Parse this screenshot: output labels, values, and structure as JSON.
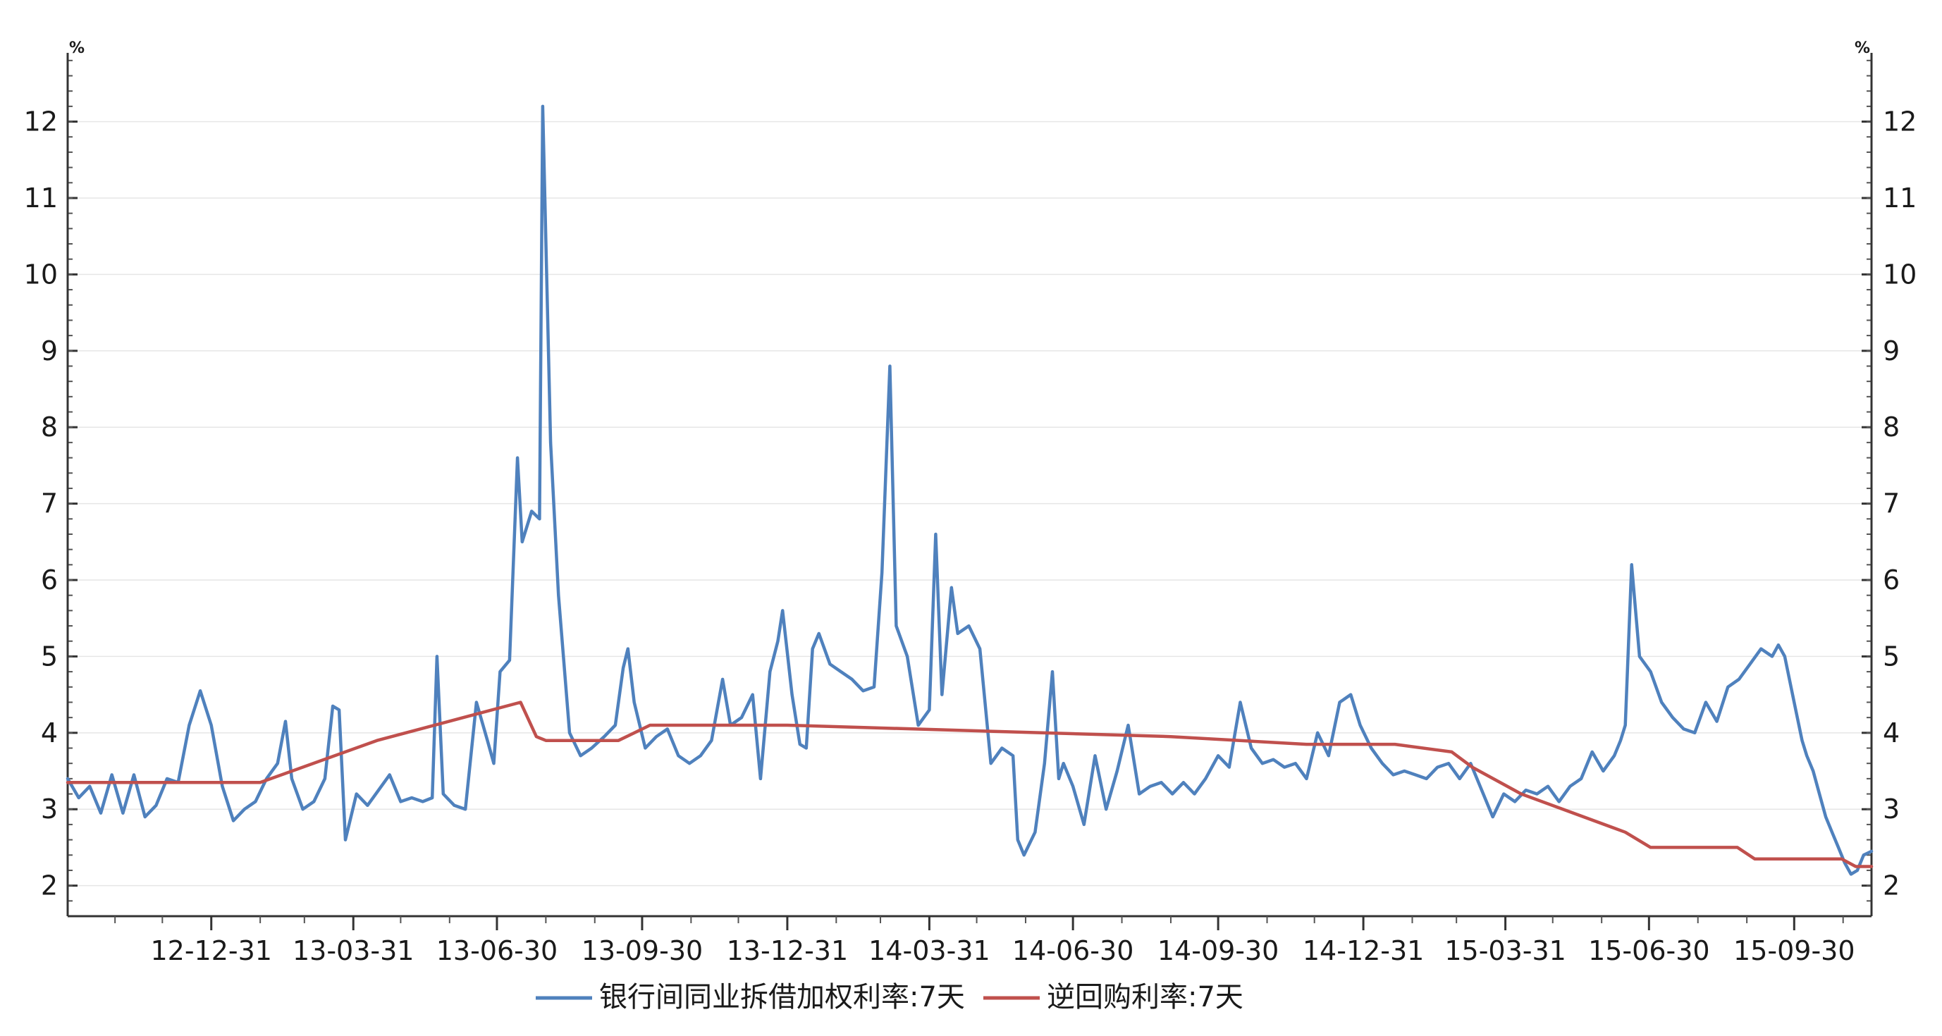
{
  "chart_data": {
    "type": "line",
    "title": "",
    "xlabel": "",
    "ylabel": "%",
    "y2label": "%",
    "x_range": [
      "2012-10-01",
      "2015-11-18"
    ],
    "ylim": [
      1.6,
      12.9
    ],
    "yticks": [
      2,
      3,
      4,
      5,
      6,
      7,
      8,
      9,
      10,
      11,
      12
    ],
    "grid": "horizontal",
    "legend_position": "bottom",
    "x_tick_labels": [
      {
        "date": "2012-12-31",
        "label": "12-12-31"
      },
      {
        "date": "2013-03-31",
        "label": "13-03-31"
      },
      {
        "date": "2013-06-30",
        "label": "13-06-30"
      },
      {
        "date": "2013-09-30",
        "label": "13-09-30"
      },
      {
        "date": "2013-12-31",
        "label": "13-12-31"
      },
      {
        "date": "2014-03-31",
        "label": "14-03-31"
      },
      {
        "date": "2014-06-30",
        "label": "14-06-30"
      },
      {
        "date": "2014-09-30",
        "label": "14-09-30"
      },
      {
        "date": "2014-12-31",
        "label": "14-12-31"
      },
      {
        "date": "2015-03-31",
        "label": "15-03-31"
      },
      {
        "date": "2015-06-30",
        "label": "15-06-30"
      },
      {
        "date": "2015-09-30",
        "label": "15-09-30"
      }
    ],
    "series": [
      {
        "name": "银行间同业拆借加权利率:7天",
        "color": "#4f81bd",
        "points": [
          [
            "2012-10-01",
            3.4
          ],
          [
            "2012-10-08",
            3.15
          ],
          [
            "2012-10-15",
            3.3
          ],
          [
            "2012-10-22",
            2.95
          ],
          [
            "2012-10-29",
            3.45
          ],
          [
            "2012-11-05",
            2.95
          ],
          [
            "2012-11-12",
            3.45
          ],
          [
            "2012-11-19",
            2.9
          ],
          [
            "2012-11-26",
            3.05
          ],
          [
            "2012-12-03",
            3.4
          ],
          [
            "2012-12-10",
            3.35
          ],
          [
            "2012-12-17",
            4.1
          ],
          [
            "2012-12-24",
            4.55
          ],
          [
            "2012-12-31",
            4.1
          ],
          [
            "2013-01-07",
            3.3
          ],
          [
            "2013-01-14",
            2.85
          ],
          [
            "2013-01-21",
            3.0
          ],
          [
            "2013-01-28",
            3.1
          ],
          [
            "2013-02-04",
            3.4
          ],
          [
            "2013-02-11",
            3.6
          ],
          [
            "2013-02-16",
            4.15
          ],
          [
            "2013-02-20",
            3.4
          ],
          [
            "2013-02-27",
            3.0
          ],
          [
            "2013-03-06",
            3.1
          ],
          [
            "2013-03-13",
            3.4
          ],
          [
            "2013-03-18",
            4.35
          ],
          [
            "2013-03-22",
            4.3
          ],
          [
            "2013-03-26",
            2.6
          ],
          [
            "2013-04-02",
            3.2
          ],
          [
            "2013-04-09",
            3.05
          ],
          [
            "2013-04-16",
            3.25
          ],
          [
            "2013-04-23",
            3.45
          ],
          [
            "2013-04-30",
            3.1
          ],
          [
            "2013-05-07",
            3.15
          ],
          [
            "2013-05-14",
            3.1
          ],
          [
            "2013-05-20",
            3.15
          ],
          [
            "2013-05-23",
            5.0
          ],
          [
            "2013-05-27",
            3.2
          ],
          [
            "2013-06-03",
            3.05
          ],
          [
            "2013-06-10",
            3.0
          ],
          [
            "2013-06-17",
            4.4
          ],
          [
            "2013-06-24",
            3.9
          ],
          [
            "2013-06-28",
            3.6
          ],
          [
            "2013-07-02",
            4.8
          ],
          [
            "2013-07-08",
            4.95
          ],
          [
            "2013-07-13",
            7.6
          ],
          [
            "2013-07-16",
            6.5
          ],
          [
            "2013-07-22",
            6.9
          ],
          [
            "2013-07-27",
            6.8
          ],
          [
            "2013-07-29",
            12.2
          ],
          [
            "2013-08-03",
            7.8
          ],
          [
            "2013-08-08",
            5.8
          ],
          [
            "2013-08-15",
            4.0
          ],
          [
            "2013-08-22",
            3.7
          ],
          [
            "2013-08-29",
            3.8
          ],
          [
            "2013-09-06",
            3.95
          ],
          [
            "2013-09-13",
            4.1
          ],
          [
            "2013-09-18",
            4.85
          ],
          [
            "2013-09-21",
            5.1
          ],
          [
            "2013-09-25",
            4.4
          ],
          [
            "2013-10-02",
            3.8
          ],
          [
            "2013-10-09",
            3.95
          ],
          [
            "2013-10-16",
            4.05
          ],
          [
            "2013-10-23",
            3.7
          ],
          [
            "2013-10-30",
            3.6
          ],
          [
            "2013-11-06",
            3.7
          ],
          [
            "2013-11-13",
            3.9
          ],
          [
            "2013-11-20",
            4.7
          ],
          [
            "2013-11-25",
            4.1
          ],
          [
            "2013-12-02",
            4.2
          ],
          [
            "2013-12-09",
            4.5
          ],
          [
            "2013-12-14",
            3.4
          ],
          [
            "2013-12-20",
            4.8
          ],
          [
            "2013-12-25",
            5.2
          ],
          [
            "2013-12-28",
            5.6
          ],
          [
            "2014-01-03",
            4.5
          ],
          [
            "2014-01-08",
            3.85
          ],
          [
            "2014-01-12",
            3.8
          ],
          [
            "2014-01-16",
            5.1
          ],
          [
            "2014-01-20",
            5.3
          ],
          [
            "2014-01-27",
            4.9
          ],
          [
            "2014-02-03",
            4.8
          ],
          [
            "2014-02-10",
            4.7
          ],
          [
            "2014-02-17",
            4.55
          ],
          [
            "2014-02-24",
            4.6
          ],
          [
            "2014-03-01",
            6.1
          ],
          [
            "2014-03-06",
            8.8
          ],
          [
            "2014-03-10",
            5.4
          ],
          [
            "2014-03-17",
            5.0
          ],
          [
            "2014-03-24",
            4.1
          ],
          [
            "2014-03-31",
            4.3
          ],
          [
            "2014-04-04",
            6.6
          ],
          [
            "2014-04-08",
            4.5
          ],
          [
            "2014-04-14",
            5.9
          ],
          [
            "2014-04-18",
            5.3
          ],
          [
            "2014-04-25",
            5.4
          ],
          [
            "2014-05-02",
            5.1
          ],
          [
            "2014-05-09",
            3.6
          ],
          [
            "2014-05-16",
            3.8
          ],
          [
            "2014-05-23",
            3.7
          ],
          [
            "2014-05-26",
            2.6
          ],
          [
            "2014-05-30",
            2.4
          ],
          [
            "2014-06-06",
            2.7
          ],
          [
            "2014-06-12",
            3.6
          ],
          [
            "2014-06-17",
            4.8
          ],
          [
            "2014-06-21",
            3.4
          ],
          [
            "2014-06-24",
            3.6
          ],
          [
            "2014-06-30",
            3.3
          ],
          [
            "2014-07-07",
            2.8
          ],
          [
            "2014-07-14",
            3.7
          ],
          [
            "2014-07-21",
            3.0
          ],
          [
            "2014-07-28",
            3.5
          ],
          [
            "2014-08-04",
            4.1
          ],
          [
            "2014-08-11",
            3.2
          ],
          [
            "2014-08-18",
            3.3
          ],
          [
            "2014-08-25",
            3.35
          ],
          [
            "2014-09-01",
            3.2
          ],
          [
            "2014-09-08",
            3.35
          ],
          [
            "2014-09-15",
            3.2
          ],
          [
            "2014-09-22",
            3.4
          ],
          [
            "2014-09-30",
            3.7
          ],
          [
            "2014-10-07",
            3.55
          ],
          [
            "2014-10-14",
            4.4
          ],
          [
            "2014-10-21",
            3.8
          ],
          [
            "2014-10-28",
            3.6
          ],
          [
            "2014-11-04",
            3.65
          ],
          [
            "2014-11-11",
            3.55
          ],
          [
            "2014-11-18",
            3.6
          ],
          [
            "2014-11-25",
            3.4
          ],
          [
            "2014-12-02",
            4.0
          ],
          [
            "2014-12-09",
            3.7
          ],
          [
            "2014-12-16",
            4.4
          ],
          [
            "2014-12-23",
            4.5
          ],
          [
            "2014-12-29",
            4.1
          ],
          [
            "2015-01-05",
            3.8
          ],
          [
            "2015-01-12",
            3.6
          ],
          [
            "2015-01-19",
            3.45
          ],
          [
            "2015-01-26",
            3.5
          ],
          [
            "2015-02-02",
            3.45
          ],
          [
            "2015-02-09",
            3.4
          ],
          [
            "2015-02-16",
            3.55
          ],
          [
            "2015-02-23",
            3.6
          ],
          [
            "2015-03-02",
            3.4
          ],
          [
            "2015-03-09",
            3.6
          ],
          [
            "2015-03-16",
            3.25
          ],
          [
            "2015-03-23",
            2.9
          ],
          [
            "2015-03-30",
            3.2
          ],
          [
            "2015-04-06",
            3.1
          ],
          [
            "2015-04-13",
            3.25
          ],
          [
            "2015-04-20",
            3.2
          ],
          [
            "2015-04-27",
            3.3
          ],
          [
            "2015-05-04",
            3.1
          ],
          [
            "2015-05-11",
            3.3
          ],
          [
            "2015-05-18",
            3.4
          ],
          [
            "2015-05-25",
            3.75
          ],
          [
            "2015-06-01",
            3.5
          ],
          [
            "2015-06-08",
            3.7
          ],
          [
            "2015-06-12",
            3.9
          ],
          [
            "2015-06-15",
            4.1
          ],
          [
            "2015-06-19",
            6.2
          ],
          [
            "2015-06-24",
            5.0
          ],
          [
            "2015-07-01",
            4.8
          ],
          [
            "2015-07-08",
            4.4
          ],
          [
            "2015-07-15",
            4.2
          ],
          [
            "2015-07-22",
            4.05
          ],
          [
            "2015-07-29",
            4.0
          ],
          [
            "2015-08-05",
            4.4
          ],
          [
            "2015-08-12",
            4.15
          ],
          [
            "2015-08-19",
            4.6
          ],
          [
            "2015-08-26",
            4.7
          ],
          [
            "2015-09-02",
            4.9
          ],
          [
            "2015-09-09",
            5.1
          ],
          [
            "2015-09-16",
            5.0
          ],
          [
            "2015-09-20",
            5.15
          ],
          [
            "2015-09-24",
            5.0
          ],
          [
            "2015-09-28",
            4.6
          ],
          [
            "2015-10-01",
            4.3
          ],
          [
            "2015-10-05",
            3.9
          ],
          [
            "2015-10-08",
            3.7
          ],
          [
            "2015-10-12",
            3.5
          ],
          [
            "2015-10-16",
            3.2
          ],
          [
            "2015-10-20",
            2.9
          ],
          [
            "2015-10-24",
            2.7
          ],
          [
            "2015-10-28",
            2.5
          ],
          [
            "2015-11-01",
            2.3
          ],
          [
            "2015-11-05",
            2.15
          ],
          [
            "2015-11-09",
            2.2
          ],
          [
            "2015-11-13",
            2.4
          ],
          [
            "2015-11-18",
            2.45
          ]
        ]
      },
      {
        "name": "逆回购利率:7天",
        "color": "#c0504d",
        "points": [
          [
            "2012-10-01",
            3.35
          ],
          [
            "2013-01-31",
            3.35
          ],
          [
            "2013-04-15",
            3.9
          ],
          [
            "2013-07-15",
            4.4
          ],
          [
            "2013-07-25",
            3.95
          ],
          [
            "2013-07-31",
            3.9
          ],
          [
            "2013-09-15",
            3.9
          ],
          [
            "2013-10-05",
            4.1
          ],
          [
            "2013-12-31",
            4.1
          ],
          [
            "2014-08-31",
            3.95
          ],
          [
            "2014-11-25",
            3.85
          ],
          [
            "2015-01-20",
            3.85
          ],
          [
            "2015-02-25",
            3.75
          ],
          [
            "2015-03-10",
            3.55
          ],
          [
            "2015-04-10",
            3.2
          ],
          [
            "2015-06-15",
            2.7
          ],
          [
            "2015-07-01",
            2.5
          ],
          [
            "2015-08-25",
            2.5
          ],
          [
            "2015-09-05",
            2.35
          ],
          [
            "2015-10-30",
            2.35
          ],
          [
            "2015-11-08",
            2.25
          ],
          [
            "2015-11-18",
            2.25
          ]
        ]
      }
    ]
  }
}
